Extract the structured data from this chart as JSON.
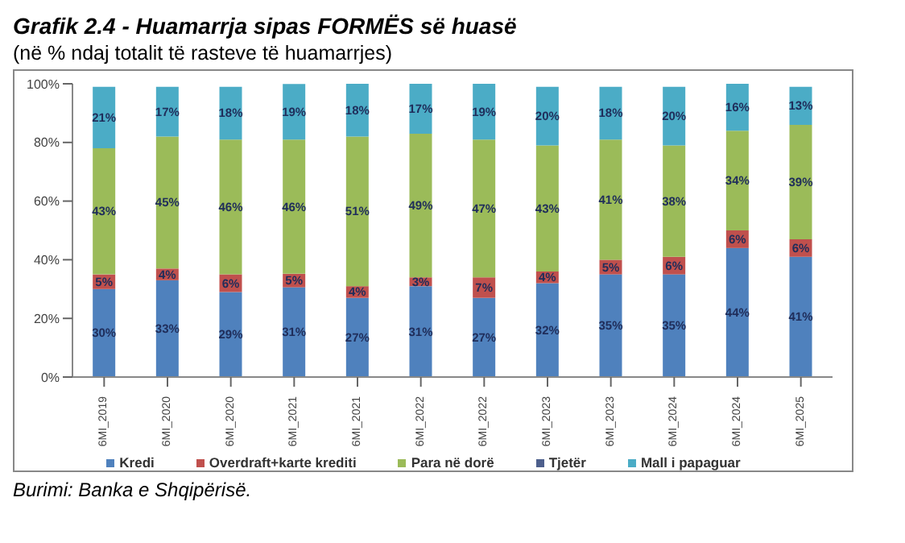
{
  "chart_data": {
    "type": "bar",
    "stacked": true,
    "title": "Grafik 2.4 - Huamarrja sipas FORMËS së huasë",
    "subtitle": "(në % ndaj totalit të rasteve të huamarrjes)",
    "annotations": [
      "Burimi: Banka e Shqipërisë."
    ],
    "categories": [
      "6MI_2019",
      "6MI_2020",
      "6MI_2020",
      "6MI_2021",
      "6MI_2021",
      "6MI_2022",
      "6MI_2022",
      "6MI_2023",
      "6MI_2023",
      "6MI_2024",
      "6MI_2024",
      "6MI_2025"
    ],
    "series": [
      {
        "name": "Kredi",
        "color": "#4f81bd",
        "values": [
          30,
          33,
          29,
          30.6,
          27,
          31,
          27,
          32,
          35,
          35,
          44,
          41
        ],
        "value_labels": [
          "30%",
          "33%",
          "29%",
          "31%",
          "27%",
          "31%",
          "27%",
          "32%",
          "35%",
          "35%",
          "44%",
          "41%"
        ]
      },
      {
        "name": "Overdraft+karte krediti",
        "color": "#c0504d",
        "values": [
          5,
          4,
          6,
          4.6,
          4,
          3,
          7,
          4,
          5,
          6,
          6,
          6
        ],
        "value_labels": [
          "5%",
          "4%",
          "6%",
          "5%",
          "4%",
          "3%",
          "7%",
          "4%",
          "5%",
          "6%",
          "6%",
          "6%"
        ]
      },
      {
        "name": "Para në dorë",
        "color": "#9bbb59",
        "values": [
          43,
          45,
          46,
          45.8,
          51,
          49,
          47,
          43,
          41,
          38,
          34,
          39
        ],
        "value_labels": [
          "43%",
          "45%",
          "46%",
          "46%",
          "51%",
          "49%",
          "47%",
          "43%",
          "41%",
          "38%",
          "34%",
          "39%"
        ]
      },
      {
        "name": "Tjetër",
        "color": "#4d5f8c",
        "values": [
          null,
          null,
          null,
          null,
          null,
          null,
          null,
          null,
          null,
          null,
          null,
          null
        ]
      },
      {
        "name": "Mall i papaguar",
        "color": "#4bacc6",
        "values": [
          21,
          17,
          18,
          18.9,
          18,
          17,
          19,
          20,
          18,
          20,
          16,
          13
        ],
        "value_labels": [
          "21%",
          "17%",
          "18%",
          "19%",
          "18%",
          "17%",
          "19%",
          "20%",
          "18%",
          "20%",
          "16%",
          "13%"
        ]
      }
    ],
    "ylim": [
      0,
      100
    ],
    "yticks": [
      {
        "value": 0,
        "label": "0%"
      },
      {
        "value": 20,
        "label": "20%"
      },
      {
        "value": 40,
        "label": "40%"
      },
      {
        "value": 60,
        "label": "60%"
      },
      {
        "value": 80,
        "label": "80%"
      },
      {
        "value": 100,
        "label": "100%"
      }
    ],
    "legend": "bottom"
  }
}
